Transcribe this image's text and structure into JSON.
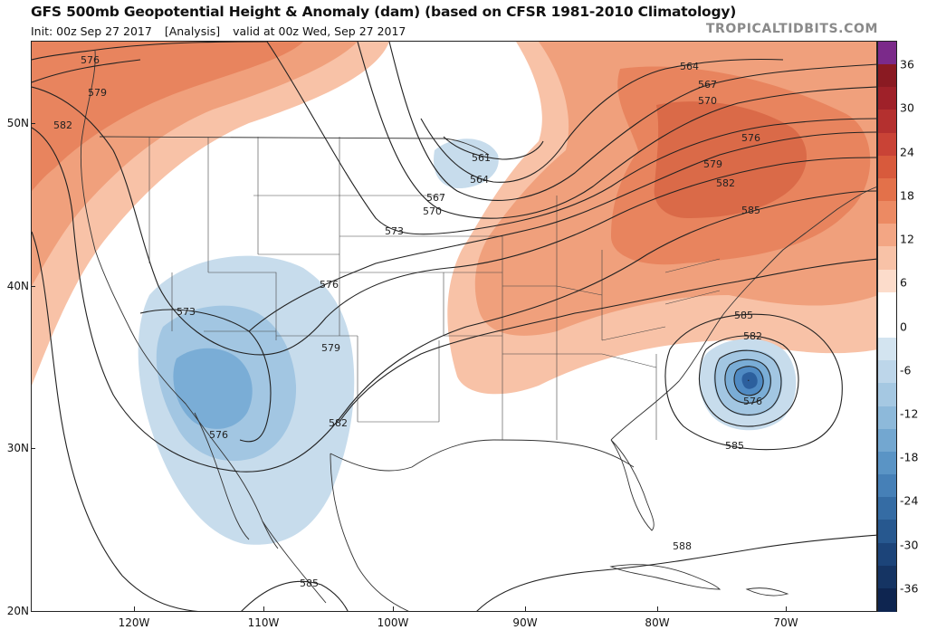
{
  "header": {
    "title": "GFS 500mb Geopotential Height & Anomaly (dam) (based on CFSR 1981-2010 Climatology)",
    "init": "Init: 00z Sep 27 2017",
    "analysis": "[Analysis]",
    "valid": "valid at 00z Wed, Sep 27 2017",
    "brand": "TROPICALTIDBITS.COM"
  },
  "colors": {
    "land": "#ffffff",
    "contour": "#222222",
    "state_border": "#333333",
    "anomaly": {
      "+30": "#a8242c",
      "+24": "#c53a34",
      "+18": "#d85a3c",
      "+12": "#e77d55",
      "+6": "#f2a983",
      "0p": "#fbd9c4",
      "0": "#ffffff",
      "-6": "#c7dcec",
      "-12": "#a2c6e2",
      "-18": "#7aadd6",
      "-24": "#4f8ac3",
      "-30": "#2c5f9d",
      "-36": "#15305e"
    }
  },
  "colorbar": {
    "labels": [
      "36",
      "30",
      "24",
      "18",
      "12",
      "6",
      "0",
      "-6",
      "-12",
      "-18",
      "-24",
      "-30",
      "-36"
    ],
    "segments": [
      "#7b2a8a",
      "#8a1a22",
      "#9f2129",
      "#b4302f",
      "#c94336",
      "#d85a3c",
      "#e3714a",
      "#ec8a63",
      "#f3a684",
      "#f8c2a7",
      "#fcdccb",
      "#ffffff",
      "#ffffff",
      "#d3e4f0",
      "#bdd6ea",
      "#a5c8e2",
      "#8db9da",
      "#73a7d0",
      "#5a94c5",
      "#4680b7",
      "#356ca4",
      "#27588f",
      "#1c4479",
      "#153463",
      "#0e2550"
    ]
  },
  "axes": {
    "lat_labels": [
      "50N",
      "40N",
      "30N",
      "20N"
    ],
    "lon_labels": [
      "120W",
      "110W",
      "100W",
      "90W",
      "80W",
      "70W"
    ]
  },
  "contour_labels": [
    "576",
    "579",
    "582",
    "564",
    "567",
    "570",
    "576",
    "579",
    "582",
    "585",
    "561",
    "564",
    "567",
    "570",
    "573",
    "576",
    "573",
    "579",
    "582",
    "576",
    "585",
    "582",
    "576",
    "585",
    "588",
    "585"
  ],
  "low_center_marker": "."
}
